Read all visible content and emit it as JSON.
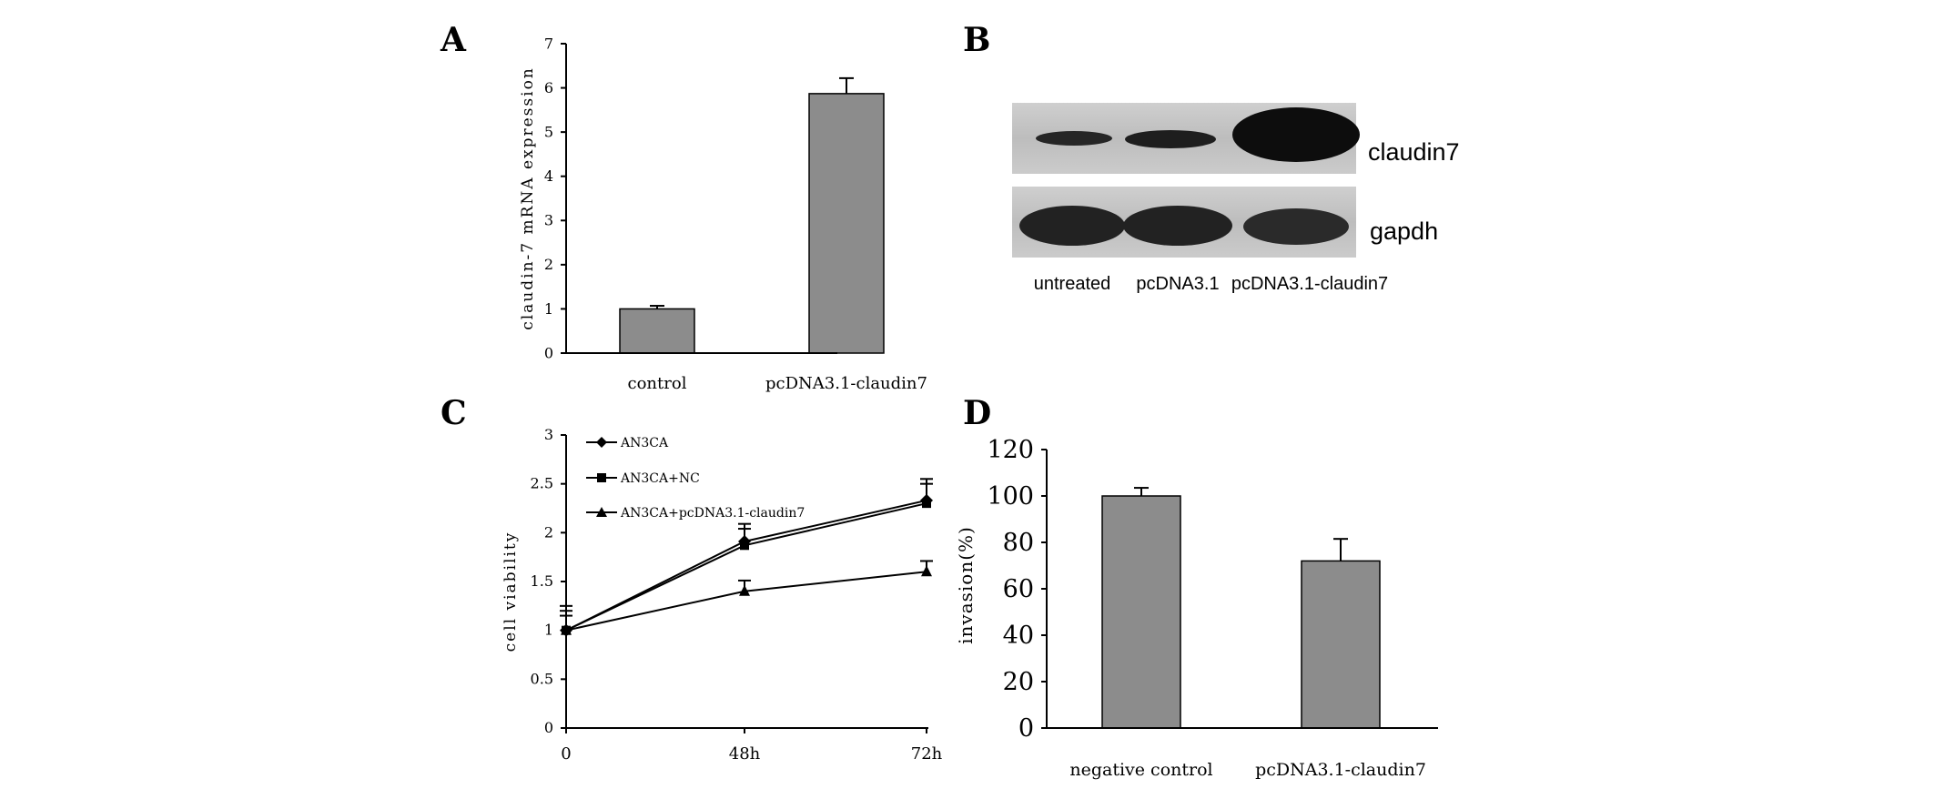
{
  "panels": {
    "a": "A",
    "b": "B",
    "c": "C",
    "d": "D"
  },
  "chart_data": [
    {
      "panel": "A",
      "type": "bar",
      "categories": [
        "control",
        "pcDNA3.1-claudin7"
      ],
      "values": [
        1.0,
        5.87
      ],
      "errors": [
        0.07,
        0.35
      ],
      "ylabel": "claudin-7 mRNA expression",
      "ylim": [
        0,
        7
      ],
      "yticks": [
        "0",
        "1",
        "2",
        "3",
        "4",
        "5",
        "6",
        "7"
      ],
      "bar_color": "#8c8c8c"
    },
    {
      "panel": "B",
      "type": "table",
      "lanes": [
        "untreated",
        "pcDNA3.1",
        "pcDNA3.1-claudin7"
      ],
      "bands": [
        "claudin7",
        "gapdh"
      ]
    },
    {
      "panel": "C",
      "type": "line",
      "categories": [
        "0",
        "48h",
        "72h"
      ],
      "ylabel": "cell viability",
      "ylim": [
        0,
        3
      ],
      "yticks": [
        "0",
        "0.5",
        "1",
        "1.5",
        "2",
        "2.5",
        "3"
      ],
      "series": [
        {
          "name": "AN3CA",
          "marker": "diamond",
          "values": [
            1.0,
            1.91,
            2.33
          ],
          "errors": [
            0.25,
            0.18,
            0.22
          ]
        },
        {
          "name": "AN3CA+NC",
          "marker": "square",
          "values": [
            1.0,
            1.87,
            2.3
          ],
          "errors": [
            0.2,
            0.17,
            0.2
          ]
        },
        {
          "name": "AN3CA+pcDNA3.1-claudin7",
          "marker": "triangle",
          "values": [
            1.0,
            1.4,
            1.6
          ],
          "errors": [
            0.15,
            0.11,
            0.11
          ]
        }
      ]
    },
    {
      "panel": "D",
      "type": "bar",
      "categories": [
        "negative control",
        "pcDNA3.1-claudin7"
      ],
      "values": [
        100,
        72
      ],
      "errors": [
        3.5,
        9.5
      ],
      "ylabel": "invasion(%)",
      "ylim": [
        0,
        120
      ],
      "yticks": [
        "0",
        "20",
        "40",
        "60",
        "80",
        "100",
        "120"
      ],
      "bar_color": "#8c8c8c"
    }
  ]
}
